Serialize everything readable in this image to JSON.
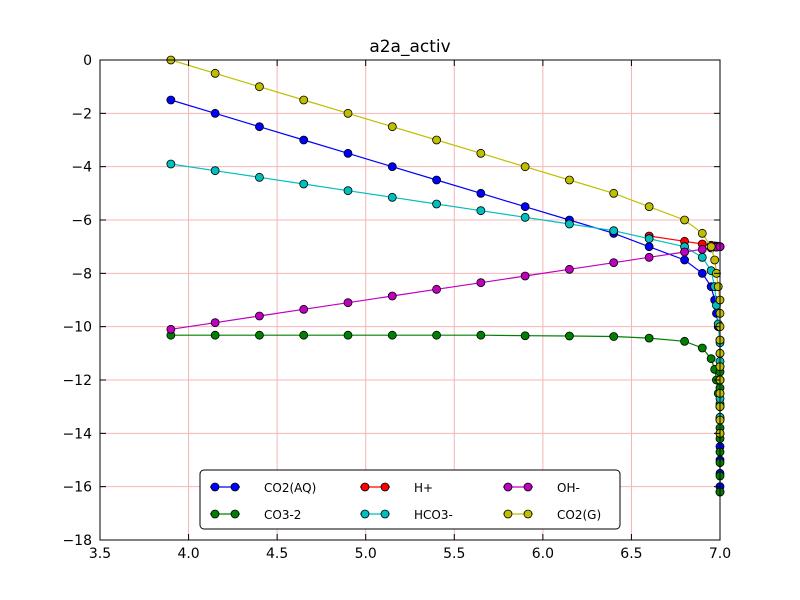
{
  "chart_data": {
    "type": "line",
    "title": "a2a_activ",
    "xlabel": "",
    "ylabel": "",
    "xlim": [
      3.5,
      7.0
    ],
    "ylim": [
      -18,
      0
    ],
    "xticks": [
      "3.5",
      "4.0",
      "4.5",
      "5.0",
      "5.5",
      "6.0",
      "6.5",
      "7.0"
    ],
    "yticks": [
      "0",
      "−2",
      "−4",
      "−6",
      "−8",
      "−10",
      "−12",
      "−14",
      "−16",
      "−18"
    ],
    "xtick_values": [
      3.5,
      4.0,
      4.5,
      5.0,
      5.5,
      6.0,
      6.5,
      7.0
    ],
    "ytick_values": [
      0,
      -2,
      -4,
      -6,
      -8,
      -10,
      -12,
      -14,
      -16,
      -18
    ],
    "grid": true,
    "grid_color": "#f4b5b5",
    "legend_position": "lower-center",
    "legend_columns": 3,
    "series": [
      {
        "name": "CO2(AQ)",
        "color": "#0000ff",
        "x": [
          3.9,
          4.15,
          4.4,
          4.65,
          4.9,
          5.15,
          5.4,
          5.65,
          5.9,
          6.15,
          6.4,
          6.6,
          6.8,
          6.9,
          6.95,
          6.97,
          6.98,
          6.99,
          7.0,
          7.0,
          7.0,
          7.0,
          7.0,
          7.0,
          7.0,
          7.0,
          7.0,
          7.0,
          7.0,
          7.0,
          7.0
        ],
        "y": [
          -1.5,
          -2.0,
          -2.5,
          -3.0,
          -3.5,
          -4.0,
          -4.5,
          -5.0,
          -5.5,
          -6.0,
          -6.5,
          -7.0,
          -7.5,
          -8.0,
          -8.5,
          -9.0,
          -9.5,
          -10.0,
          -10.5,
          -11.0,
          -11.5,
          -12.0,
          -12.5,
          -13.0,
          -13.5,
          -14.0,
          -14.5,
          -15.0,
          -15.5,
          -16.0,
          -16.2
        ]
      },
      {
        "name": "CO3-2",
        "color": "#008000",
        "x": [
          3.9,
          4.15,
          4.4,
          4.65,
          4.9,
          5.15,
          5.4,
          5.65,
          5.9,
          6.15,
          6.4,
          6.6,
          6.8,
          6.9,
          6.95,
          6.97,
          6.98,
          6.99,
          7.0,
          7.0,
          7.0,
          7.0,
          7.0,
          7.0,
          7.0,
          7.0,
          7.0,
          7.0,
          7.0,
          7.0
        ],
        "y": [
          -10.32,
          -10.32,
          -10.32,
          -10.32,
          -10.32,
          -10.32,
          -10.32,
          -10.32,
          -10.34,
          -10.35,
          -10.37,
          -10.43,
          -10.55,
          -10.8,
          -11.2,
          -11.6,
          -12.0,
          -12.5,
          -13.0,
          -13.4,
          -13.8,
          -14.2,
          -14.7,
          -15.1,
          -15.6,
          -16.2,
          -11.7,
          -12.3,
          -12.9,
          -13.5
        ]
      },
      {
        "name": "H+",
        "color": "#ff0000",
        "x": [
          6.6,
          6.8,
          6.9,
          6.95,
          6.97,
          6.98,
          6.99,
          7.0,
          7.0
        ],
        "y": [
          -6.6,
          -6.8,
          -6.9,
          -6.95,
          -6.97,
          -6.98,
          -6.99,
          -7.0,
          -7.0
        ]
      },
      {
        "name": "HCO3-",
        "color": "#00bfbf",
        "x": [
          3.9,
          4.15,
          4.4,
          4.65,
          4.9,
          5.15,
          5.4,
          5.65,
          5.9,
          6.15,
          6.4,
          6.6,
          6.8,
          6.9,
          6.95,
          6.97,
          6.98,
          6.99,
          7.0,
          7.0,
          7.0,
          7.0,
          7.0,
          7.0
        ],
        "y": [
          -3.9,
          -4.15,
          -4.4,
          -4.65,
          -4.9,
          -5.15,
          -5.4,
          -5.65,
          -5.9,
          -6.15,
          -6.4,
          -6.7,
          -7.0,
          -7.4,
          -7.9,
          -8.5,
          -9.2,
          -9.9,
          -10.6,
          -11.3,
          -12.0,
          -12.7,
          -13.4,
          -14.0
        ]
      },
      {
        "name": "OH-",
        "color": "#bf00bf",
        "x": [
          3.9,
          4.15,
          4.4,
          4.65,
          4.9,
          5.15,
          5.4,
          5.65,
          5.9,
          6.15,
          6.4,
          6.6,
          6.8,
          6.9,
          6.95,
          6.98,
          7.0
        ],
        "y": [
          -10.1,
          -9.85,
          -9.6,
          -9.35,
          -9.1,
          -8.85,
          -8.6,
          -8.35,
          -8.1,
          -7.85,
          -7.6,
          -7.4,
          -7.2,
          -7.1,
          -7.05,
          -7.02,
          -7.0
        ]
      },
      {
        "name": "CO2(G)",
        "color": "#bfbf00",
        "x": [
          3.9,
          4.15,
          4.4,
          4.65,
          4.9,
          5.15,
          5.4,
          5.65,
          5.9,
          6.15,
          6.4,
          6.6,
          6.8,
          6.9,
          6.95,
          6.97,
          6.98,
          6.99,
          7.0,
          7.0,
          7.0,
          7.0,
          7.0,
          7.0,
          7.0,
          7.0,
          7.0,
          7.0,
          7.0
        ],
        "y": [
          0.0,
          -0.5,
          -1.0,
          -1.5,
          -2.0,
          -2.5,
          -3.0,
          -3.5,
          -4.0,
          -4.5,
          -5.0,
          -5.5,
          -6.0,
          -6.5,
          -7.0,
          -7.5,
          -8.0,
          -8.5,
          -9.0,
          -9.5,
          -10.0,
          -10.5,
          -11.0,
          -11.5,
          -12.0,
          -12.5,
          -13.0,
          -13.5,
          -14.0
        ]
      }
    ]
  }
}
